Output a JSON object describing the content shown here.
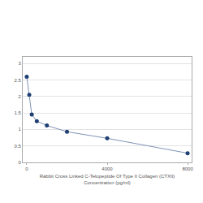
{
  "chart_data": {
    "type": "line",
    "xlabel": [
      "Rabbit Cross Linked C-Telopeptide Of Type II Collagen (CTXII)",
      "Concentration (pg/ml)"
    ],
    "x": [
      0,
      125,
      250,
      500,
      1000,
      2000,
      4000,
      8000
    ],
    "series": [
      {
        "color": "#1f3f73",
        "values": [
          2.6,
          2.05,
          1.45,
          1.25,
          1.12,
          0.93,
          0.73,
          0.28
        ]
      }
    ],
    "marker": "circle",
    "line_style": "solid",
    "xlim": [
      -200,
      8200
    ],
    "xticks": [
      0,
      4000,
      8000
    ],
    "ylim": [
      0,
      3.2
    ],
    "yticks": [
      0,
      0.5,
      1,
      1.5,
      2,
      2.5,
      3
    ],
    "grid": true
  }
}
